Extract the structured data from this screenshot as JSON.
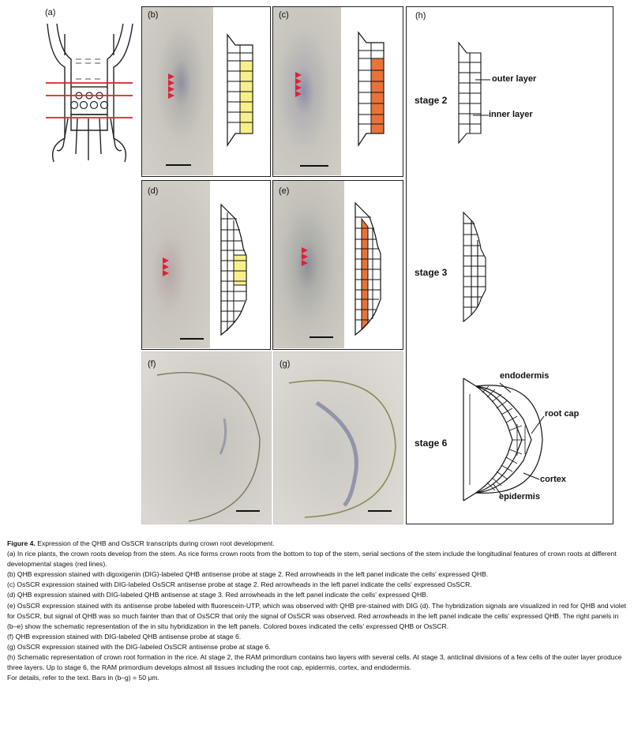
{
  "figure": {
    "panels": {
      "a": "(a)",
      "b": "(b)",
      "c": "(c)",
      "d": "(d)",
      "e": "(e)",
      "f": "(f)",
      "g": "(g)",
      "h": "(h)"
    },
    "schematic_h": {
      "stage2": "stage 2",
      "stage3": "stage 3",
      "stage6": "stage 6",
      "outer_layer": "outer layer",
      "inner_layer": "inner layer",
      "endodermis": "endodermis",
      "root_cap": "root cap",
      "cortex": "cortex",
      "epidermis": "epidermis"
    },
    "colors": {
      "qhb_yellow": "#f7ef8a",
      "osscr_orange": "#e8733a",
      "red_lines": "#e0202a",
      "arrowheads": "#e0203a"
    }
  },
  "caption": {
    "title_prefix": "Figure 4.",
    "title_rest": "Expression of the QHB and OsSCR transcripts during crown root development.",
    "a": "(a) In rice plants, the crown roots develop from the stem. As rice forms crown roots from the bottom to top of the stem, serial sections of the stem include the longitudinal features of crown roots at different developmental stages (red lines).",
    "b": "(b) QHB expression stained with digoxigenin (DIG)-labeled QHB antisense probe at stage 2. Red arrowheads in the left panel indicate the cells' expressed QHB.",
    "c": "(c) OsSCR expression stained with DIG-labeled OsSCR antisense probe at stage 2. Red arrowheads in the left panel indicate the cells' expressed OsSCR.",
    "d": "(d) QHB expression stained with DIG-labeled QHB antisense at stage 3. Red arrowheads in the left panel indicate the cells' expressed QHB.",
    "e": "(e) OsSCR expression stained with its antisense probe labeled with fluorescein-UTP, which was observed with QHB pre-stained with DIG (d). The hybridization signals are visualized in red for QHB and violet for OsSCR, but signal of QHB was so much fainter than that of OsSCR that only the signal of OsSCR was observed. Red arrowheads in the left panel indicate the cells' expressed QHB. The right panels in (b–e) show the schematic representation of the in situ hybridization in the left panels. Colored boxes indicated the cells' expressed QHB or OsSCR.",
    "f": "(f) QHB expression stained with DIG-labeled QHB antisense probe at stage 6.",
    "g": "(g) OsSCR expression stained with the DIG-labeled OsSCR antisense probe at stage 6.",
    "h": "(h) Schematic representation of crown root formation in the rice. At stage 2, the RAM primordium contains two layers with several cells. At stage 3, anticlinal divisions of a few cells of the outer layer produce three layers. Up to stage 6, the RAM primordium develops almost all tissues including the root cap, epidermis, cortex, and endodermis.",
    "details": "For details, refer to the text. Bars in (b–g) = 50 μm."
  }
}
